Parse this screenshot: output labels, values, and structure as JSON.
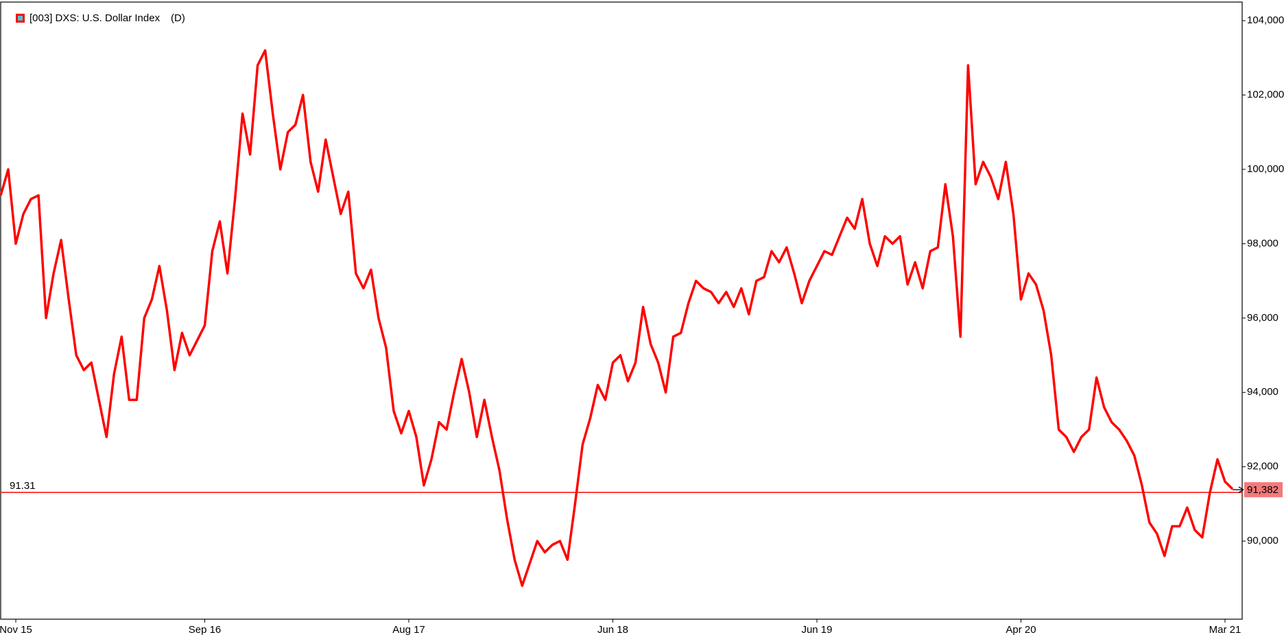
{
  "chart_data": {
    "type": "line",
    "series": [
      {
        "name": "[003] DXS: U.S. Dollar Index",
        "color": "#ff0000",
        "values": [
          99.3,
          100.0,
          98.0,
          98.8,
          99.2,
          99.3,
          96.0,
          97.2,
          98.1,
          96.5,
          95.0,
          94.6,
          94.8,
          93.8,
          92.8,
          94.5,
          95.5,
          93.8,
          93.8,
          96.0,
          96.5,
          97.4,
          96.2,
          94.6,
          95.6,
          95.0,
          95.4,
          95.8,
          97.8,
          98.6,
          97.2,
          99.2,
          101.5,
          100.4,
          102.8,
          103.2,
          101.5,
          100.0,
          101.0,
          101.2,
          102.0,
          100.2,
          99.4,
          100.8,
          99.8,
          98.8,
          99.4,
          97.2,
          96.8,
          97.3,
          96.0,
          95.2,
          93.5,
          92.9,
          93.5,
          92.8,
          91.5,
          92.2,
          93.2,
          93.0,
          94.0,
          94.9,
          94.0,
          92.8,
          93.8,
          92.8,
          91.9,
          90.6,
          89.5,
          88.8,
          89.4,
          90.0,
          89.7,
          89.9,
          90.0,
          89.5,
          91.0,
          92.6,
          93.3,
          94.2,
          93.8,
          94.8,
          95.0,
          94.3,
          94.8,
          96.3,
          95.3,
          94.8,
          94.0,
          95.5,
          95.6,
          96.4,
          97.0,
          96.8,
          96.7,
          96.4,
          96.7,
          96.3,
          96.8,
          96.1,
          97.0,
          97.1,
          97.8,
          97.5,
          97.9,
          97.2,
          96.4,
          97.0,
          97.4,
          97.8,
          97.7,
          98.2,
          98.7,
          98.4,
          99.2,
          98.0,
          97.4,
          98.2,
          98.0,
          98.2,
          96.9,
          97.5,
          96.8,
          97.8,
          97.9,
          99.6,
          98.2,
          95.5,
          102.8,
          99.6,
          100.2,
          99.8,
          99.2,
          100.2,
          98.8,
          96.5,
          97.2,
          96.9,
          96.2,
          95.0,
          93.0,
          92.8,
          92.4,
          92.8,
          93.0,
          94.4,
          93.6,
          93.2,
          93.0,
          92.7,
          92.3,
          91.5,
          90.5,
          90.2,
          89.6,
          90.4,
          90.4,
          90.9,
          90.3,
          90.1,
          91.3,
          92.2,
          91.6,
          91.4
        ]
      }
    ],
    "categories": [
      null,
      null,
      "Nov 15",
      null,
      null,
      null,
      null,
      null,
      null,
      null,
      null,
      null,
      null,
      null,
      null,
      null,
      null,
      null,
      null,
      null,
      null,
      null,
      null,
      null,
      null,
      null,
      null,
      "Sep 16",
      null,
      null,
      null,
      null,
      null,
      null,
      null,
      null,
      null,
      null,
      null,
      null,
      null,
      null,
      null,
      null,
      null,
      null,
      null,
      null,
      null,
      null,
      null,
      null,
      null,
      null,
      "Aug 17",
      null,
      null,
      null,
      null,
      null,
      null,
      null,
      null,
      null,
      null,
      null,
      null,
      null,
      null,
      null,
      null,
      null,
      null,
      null,
      null,
      null,
      null,
      null,
      null,
      null,
      null,
      "Jun 18",
      null,
      null,
      null,
      null,
      null,
      null,
      null,
      null,
      null,
      null,
      null,
      null,
      null,
      null,
      null,
      null,
      null,
      null,
      null,
      null,
      null,
      null,
      null,
      null,
      null,
      null,
      "Jun 19",
      null,
      null,
      null,
      null,
      null,
      null,
      null,
      null,
      null,
      null,
      null,
      null,
      null,
      null,
      null,
      null,
      null,
      null,
      null,
      null,
      null,
      null,
      null,
      null,
      null,
      null,
      "Apr 20",
      null,
      null,
      null,
      null,
      null,
      null,
      null,
      null,
      null,
      null,
      null,
      null,
      null,
      null,
      null,
      null,
      null,
      null,
      null,
      null,
      null,
      null,
      null,
      null,
      null,
      null,
      "Mar 21",
      null
    ],
    "ylim": [
      87.9,
      104.5
    ],
    "yticks": [
      {
        "value": 90,
        "label": "90,000"
      },
      {
        "value": 92,
        "label": "92,000"
      },
      {
        "value": 94,
        "label": "94,000"
      },
      {
        "value": 96,
        "label": "96,000"
      },
      {
        "value": 98,
        "label": "98,000"
      },
      {
        "value": 100,
        "label": "100,000"
      },
      {
        "value": 102,
        "label": "102,000"
      },
      {
        "value": 104,
        "label": "104,000"
      }
    ],
    "period": "(D)",
    "reference_line": {
      "value": 91.31,
      "color": "#ff0000"
    },
    "last_value": {
      "value": 91.382,
      "label": "91,382"
    }
  }
}
